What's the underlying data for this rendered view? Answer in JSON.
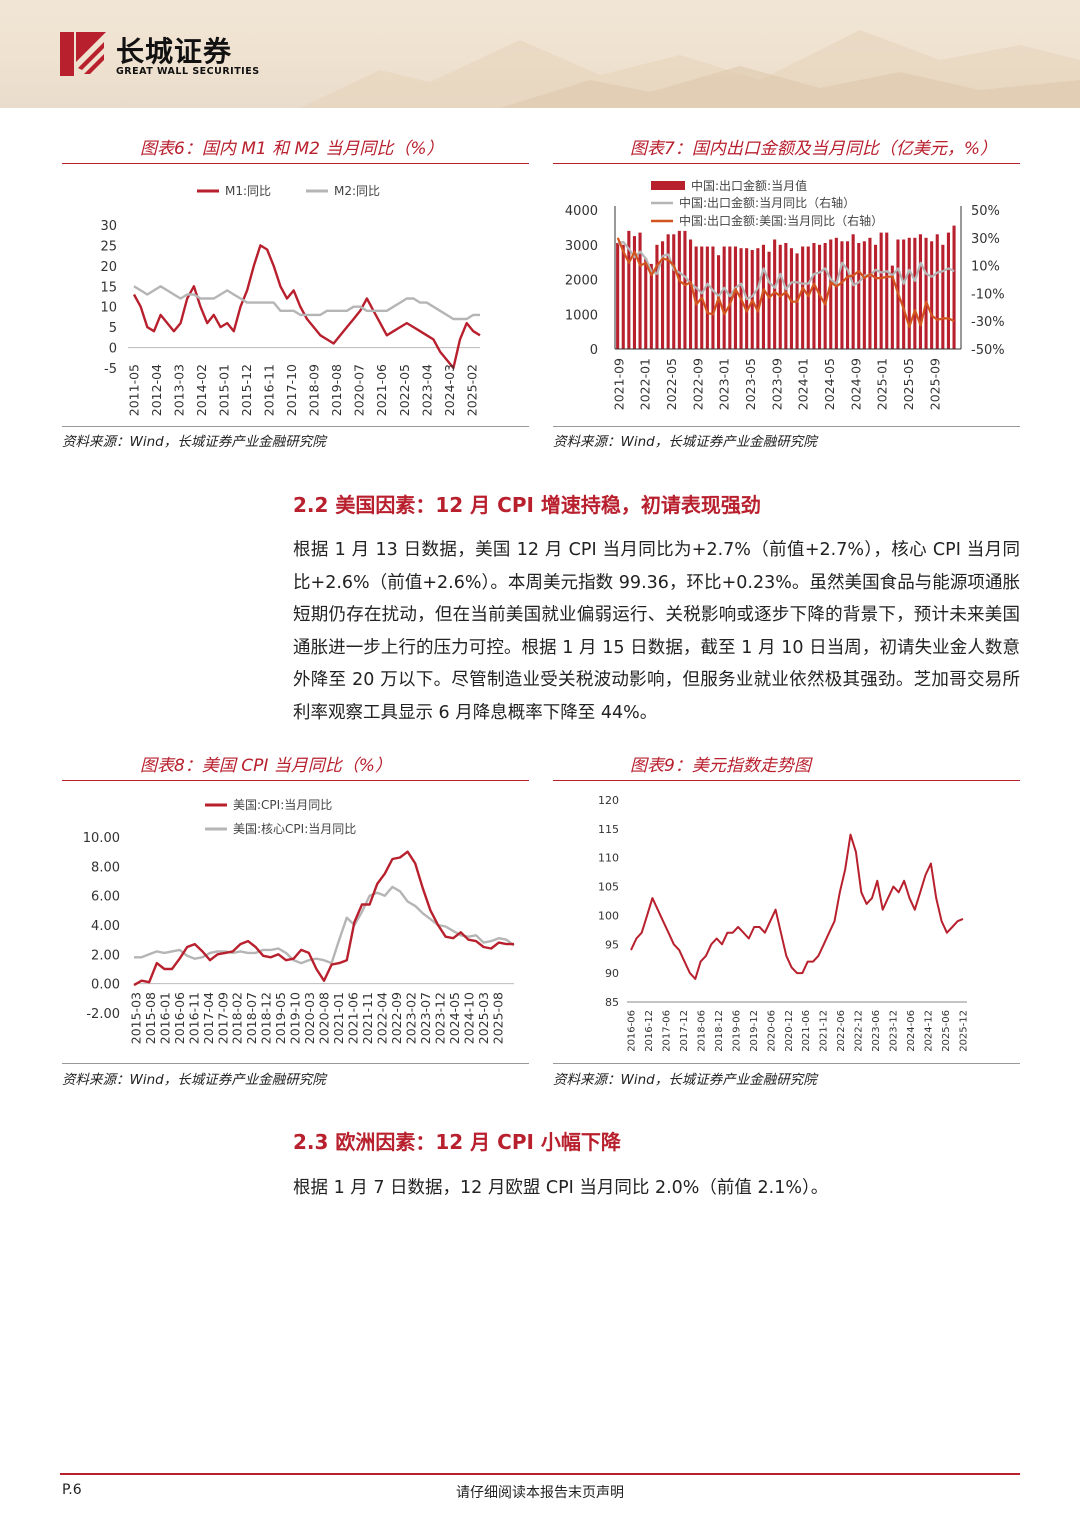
{
  "header": {
    "company_cn": "长城证券",
    "company_en": "GREAT WALL SECURITIES"
  },
  "figures": {
    "fig6": {
      "title": "图表6：国内 M1 和 M2 当月同比（%）",
      "source": "资料来源：Wind，长城证券产业金融研究院"
    },
    "fig7": {
      "title": "图表7：国内出口金额及当月同比（亿美元，%）",
      "source": "资料来源：Wind，长城证券产业金融研究院"
    },
    "fig8": {
      "title": "图表8：美国 CPI 当月同比（%）",
      "source": "资料来源：Wind，长城证券产业金融研究院"
    },
    "fig9": {
      "title": "图表9：美元指数走势图",
      "source": "资料来源：Wind，长城证券产业金融研究院"
    }
  },
  "sections": {
    "s22": {
      "heading": "2.2 美国因素：12 月 CPI 增速持稳，初请表现强劲",
      "body": "根据 1 月 13 日数据，美国 12 月 CPI 当月同比为+2.7%（前值+2.7%），核心 CPI 当月同比+2.6%（前值+2.6%）。本周美元指数 99.36，环比+0.23%。虽然美国食品与能源项通胀短期仍存在扰动，但在当前美国就业偏弱运行、关税影响或逐步下降的背景下，预计未来美国通胀进一步上行的压力可控。根据 1 月 15 日数据，截至 1 月 10 日当周，初请失业金人数意外降至 20 万以下。尽管制造业受关税波动影响，但服务业就业依然极其强劲。芝加哥交易所利率观察工具显示 6 月降息概率下降至 44%。"
    },
    "s23": {
      "heading": "2.3 欧洲因素：12 月 CPI 小幅下降",
      "body": "根据 1 月 7 日数据，12 月欧盟 CPI 当月同比 2.0%（前值 2.1%）。"
    }
  },
  "footer": {
    "page": "P.6",
    "disclaimer": "请仔细阅读本报告末页声明"
  },
  "colors": {
    "brand_red": "#b8202e",
    "gray_series": "#b5b5b5",
    "orange_series": "#d2541e"
  },
  "chart_data": [
    {
      "id": "fig6",
      "type": "line",
      "legend": [
        "M1:同比",
        "M2:同比"
      ],
      "x_ticks": [
        "2011-05",
        "2012-04",
        "2013-03",
        "2014-02",
        "2015-01",
        "2015-12",
        "2016-11",
        "2017-10",
        "2018-09",
        "2019-08",
        "2020-07",
        "2021-06",
        "2022-05",
        "2023-04",
        "2024-03",
        "2025-02"
      ],
      "y_ticks": [
        30,
        25,
        20,
        15,
        10,
        5,
        0,
        -5
      ],
      "ylim": [
        -5,
        30
      ],
      "series": [
        {
          "name": "M1:同比",
          "color": "#b8202e",
          "values": [
            13,
            10,
            5,
            4,
            8,
            6,
            4,
            6,
            12,
            15,
            10,
            6,
            8,
            5,
            6,
            4,
            10,
            14,
            20,
            25,
            24,
            20,
            15,
            12,
            14,
            10,
            7,
            5,
            3,
            2,
            1,
            3,
            5,
            7,
            9,
            12,
            9,
            6,
            3,
            4,
            5,
            6,
            5,
            4,
            3,
            2,
            -1,
            -3,
            -5,
            2,
            6,
            4,
            3
          ]
        },
        {
          "name": "M2:同比",
          "color": "#b5b5b5",
          "values": [
            15,
            14,
            13,
            14,
            15,
            14,
            13,
            12,
            13,
            13,
            12,
            12,
            12,
            13,
            14,
            13,
            12,
            11,
            11,
            11,
            11,
            11,
            9,
            9,
            9,
            8,
            8,
            8,
            8,
            9,
            9,
            9,
            9,
            10,
            10,
            9,
            9,
            9,
            9,
            10,
            11,
            12,
            12,
            11,
            11,
            10,
            9,
            8,
            7,
            7,
            7,
            8,
            8
          ]
        }
      ]
    },
    {
      "id": "fig7",
      "type": "bar",
      "legend": [
        "中国:出口金额:当月值",
        "中国:出口金额:当月同比（右轴）",
        "中国:出口金额:美国:当月同比（右轴）"
      ],
      "x_ticks": [
        "2021-09",
        "2022-01",
        "2022-05",
        "2022-09",
        "2023-01",
        "2023-05",
        "2023-09",
        "2024-01",
        "2024-05",
        "2024-09",
        "2025-01",
        "2025-05",
        "2025-09"
      ],
      "y_ticks_left": [
        4000,
        3000,
        2000,
        1000,
        0
      ],
      "ylim_left": [
        0,
        4000
      ],
      "y_ticks_right": [
        "50%",
        "30%",
        "10%",
        "-10%",
        "-30%",
        "-50%"
      ],
      "ylim_right": [
        -50,
        50
      ],
      "series": [
        {
          "name": "中国:出口金额:当月值",
          "color": "#b8202e",
          "values": [
            3050,
            3000,
            3400,
            3250,
            3350,
            2600,
            2450,
            3000,
            3100,
            3300,
            3300,
            3400,
            3400,
            3150,
            2950,
            2950,
            2950,
            2950,
            2700,
            2950,
            2950,
            2950,
            2900,
            2900,
            2850,
            2900,
            3000,
            2800,
            3150,
            3000,
            3050,
            2900,
            2750,
            2950,
            2950,
            3050,
            3000,
            3050,
            3150,
            3200,
            3100,
            3100,
            3300,
            3050,
            3100,
            3200,
            3000,
            3350,
            3350,
            2400,
            3150,
            3150,
            3200,
            3200,
            3300,
            3200,
            3100,
            3300,
            3000,
            3350,
            3550
          ]
        },
        {
          "name": "中国:出口金额:当月同比（右轴）",
          "color": "#b5b5b5",
          "values": [
            26,
            27,
            22,
            16,
            20,
            15,
            6,
            4,
            17,
            18,
            7,
            5,
            2,
            -3,
            -6,
            -10,
            -3,
            -8,
            -12,
            -6,
            -12,
            -6,
            -3,
            -14,
            -12,
            -6,
            8,
            -2,
            -6,
            4,
            -7,
            -2,
            -2,
            -3,
            -3,
            4,
            5,
            8,
            0,
            -3,
            12,
            7,
            -4,
            -2,
            3,
            3,
            7,
            5,
            6,
            3,
            8,
            -3,
            7,
            -1,
            12,
            4,
            2,
            5,
            6,
            8,
            6
          ]
        },
        {
          "name": "中国:出口金额:美国:当月同比（右轴）",
          "color": "#d2541e",
          "values": [
            30,
            20,
            12,
            20,
            10,
            12,
            3,
            10,
            15,
            14,
            10,
            -1,
            -4,
            -2,
            -18,
            -13,
            -24,
            -25,
            -13,
            -25,
            -18,
            -7,
            -14,
            -23,
            -15,
            -23,
            -7,
            -13,
            -9,
            -12,
            -9,
            -16,
            -16,
            -6,
            -12,
            -3,
            -11,
            -18,
            -2,
            -5,
            -2,
            2,
            3,
            6,
            1,
            4,
            1,
            1,
            2,
            2,
            -10,
            -21,
            -34,
            -22,
            -33,
            -16,
            -26,
            -29,
            -28,
            -28,
            -30
          ]
        }
      ]
    },
    {
      "id": "fig8",
      "type": "line",
      "legend": [
        "美国:CPI:当月同比",
        "美国:核心CPI:当月同比"
      ],
      "x_ticks": [
        "2015-03",
        "2015-08",
        "2016-01",
        "2016-06",
        "2016-11",
        "2017-04",
        "2017-09",
        "2018-02",
        "2018-07",
        "2018-12",
        "2019-05",
        "2019-10",
        "2020-03",
        "2020-08",
        "2021-01",
        "2021-06",
        "2021-11",
        "2022-04",
        "2022-09",
        "2023-02",
        "2023-07",
        "2023-12",
        "2024-05",
        "2024-10",
        "2025-03",
        "2025-08"
      ],
      "y_ticks": [
        "10.00",
        "8.00",
        "6.00",
        "4.00",
        "2.00",
        "0.00",
        "-2.00"
      ],
      "ylim": [
        -2,
        10
      ],
      "series": [
        {
          "name": "美国:CPI:当月同比",
          "color": "#b8202e",
          "values": [
            -0.1,
            0.2,
            0.1,
            1.4,
            1.0,
            1.0,
            1.7,
            2.5,
            2.7,
            2.2,
            1.6,
            2.0,
            2.1,
            2.2,
            2.7,
            2.9,
            2.5,
            1.9,
            1.8,
            2.0,
            1.6,
            1.7,
            2.3,
            2.1,
            1.0,
            0.2,
            1.3,
            1.4,
            1.6,
            4.2,
            5.4,
            5.4,
            6.8,
            7.5,
            8.5,
            8.6,
            9.0,
            8.2,
            6.5,
            5.0,
            4.0,
            3.2,
            3.1,
            3.5,
            3.0,
            2.9,
            2.5,
            2.4,
            2.8,
            2.7,
            2.7
          ]
        },
        {
          "name": "美国:核心CPI:当月同比",
          "color": "#b5b5b5",
          "values": [
            1.8,
            1.8,
            2.0,
            2.2,
            2.1,
            2.2,
            2.3,
            1.9,
            1.7,
            1.8,
            2.1,
            2.2,
            2.2,
            2.1,
            2.2,
            2.1,
            2.1,
            2.3,
            2.3,
            2.4,
            2.1,
            1.6,
            1.4,
            1.6,
            1.7,
            1.6,
            1.4,
            3.0,
            4.5,
            4.0,
            4.9,
            6.0,
            6.2,
            6.0,
            6.6,
            6.3,
            5.6,
            5.3,
            4.8,
            4.4,
            4.0,
            3.9,
            3.6,
            3.3,
            3.2,
            3.3,
            2.8,
            2.9,
            3.1,
            3.0,
            2.6
          ]
        }
      ]
    },
    {
      "id": "fig9",
      "type": "line",
      "x_ticks": [
        "2016-06",
        "2016-12",
        "2017-06",
        "2017-12",
        "2018-06",
        "2018-12",
        "2019-06",
        "2019-12",
        "2020-06",
        "2020-12",
        "2021-06",
        "2021-12",
        "2022-06",
        "2022-12",
        "2023-06",
        "2023-12",
        "2024-06",
        "2024-12",
        "2025-06",
        "2025-12"
      ],
      "y_ticks": [
        120,
        115,
        110,
        105,
        100,
        95,
        90,
        85
      ],
      "ylim": [
        85,
        120
      ],
      "series": [
        {
          "name": "美元指数",
          "color": "#b8202e",
          "values": [
            94,
            96,
            97,
            100,
            103,
            101,
            99,
            97,
            95,
            94,
            92,
            90,
            89,
            92,
            93,
            95,
            96,
            95,
            97,
            97,
            98,
            97,
            96,
            98,
            98,
            97,
            99,
            101,
            97,
            93,
            91,
            90,
            90,
            92,
            92,
            93,
            95,
            97,
            99,
            104,
            108,
            114,
            111,
            104,
            102,
            103,
            106,
            101,
            103,
            105,
            104,
            106,
            103,
            101,
            104,
            107,
            109,
            103,
            99,
            97,
            98,
            99,
            99.4
          ]
        }
      ]
    }
  ]
}
